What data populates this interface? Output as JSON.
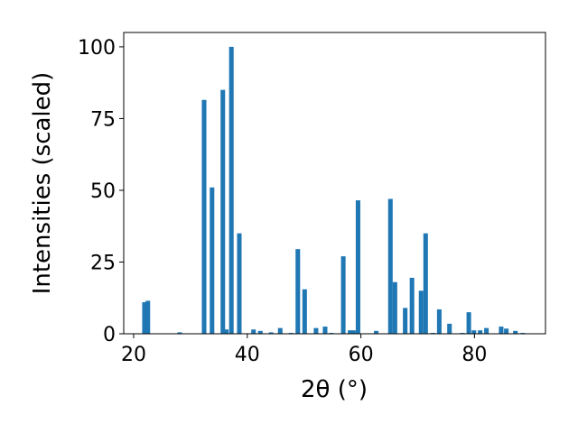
{
  "chart_data": {
    "type": "bar",
    "xlabel": "2θ (°)",
    "ylabel": "Intensities (scaled)",
    "x": [
      21.9,
      22.5,
      28.1,
      32.4,
      33.8,
      35.7,
      36.3,
      37.2,
      38.6,
      41.1,
      42.3,
      44.2,
      45.8,
      47.7,
      48.9,
      50.1,
      52.1,
      53.7,
      54.8,
      56.9,
      58.1,
      58.7,
      59.5,
      62.7,
      65.2,
      66.0,
      67.8,
      69.0,
      70.6,
      71.4,
      72.7,
      73.8,
      75.6,
      77.9,
      79.0,
      79.9,
      81.0,
      82.1,
      84.7,
      85.6,
      87.2,
      88.5
    ],
    "values": [
      11,
      11.5,
      0.5,
      81.5,
      51,
      85,
      1.5,
      100,
      35,
      1.5,
      1,
      0.5,
      2,
      0.3,
      29.5,
      15.5,
      2,
      2.5,
      0.3,
      27,
      1.2,
      1.2,
      46.5,
      1,
      47,
      18,
      9,
      19.5,
      15,
      35,
      0.3,
      8.5,
      3.5,
      0.3,
      7.5,
      1.2,
      1.2,
      2,
      2.5,
      1.8,
      1,
      0.3
    ],
    "color": "#1f77b4",
    "xlim": [
      18.25,
      92.5
    ],
    "ylim": [
      0,
      105
    ],
    "xticks": [
      20,
      40,
      60,
      80
    ],
    "yticks": [
      0,
      25,
      50,
      75,
      100
    ]
  }
}
